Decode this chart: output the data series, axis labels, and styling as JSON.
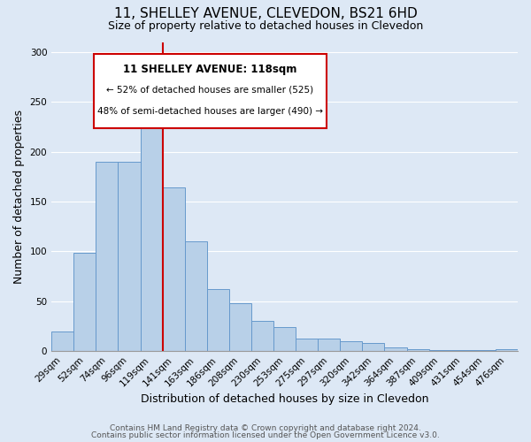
{
  "title": "11, SHELLEY AVENUE, CLEVEDON, BS21 6HD",
  "subtitle": "Size of property relative to detached houses in Clevedon",
  "xlabel": "Distribution of detached houses by size in Clevedon",
  "ylabel": "Number of detached properties",
  "bar_labels": [
    "29sqm",
    "52sqm",
    "74sqm",
    "96sqm",
    "119sqm",
    "141sqm",
    "163sqm",
    "186sqm",
    "208sqm",
    "230sqm",
    "253sqm",
    "275sqm",
    "297sqm",
    "320sqm",
    "342sqm",
    "364sqm",
    "387sqm",
    "409sqm",
    "431sqm",
    "454sqm",
    "476sqm"
  ],
  "bar_values": [
    20,
    99,
    190,
    190,
    243,
    164,
    110,
    62,
    48,
    30,
    24,
    13,
    13,
    10,
    8,
    4,
    2,
    1,
    1,
    1,
    2
  ],
  "bar_color": "#b8d0e8",
  "bar_edge_color": "#6699cc",
  "ylim": [
    0,
    310
  ],
  "yticks": [
    0,
    50,
    100,
    150,
    200,
    250,
    300
  ],
  "vline_x_idx": 4,
  "vline_color": "#cc0000",
  "annotation_title": "11 SHELLEY AVENUE: 118sqm",
  "annotation_line1": "← 52% of detached houses are smaller (525)",
  "annotation_line2": "48% of semi-detached houses are larger (490) →",
  "annotation_box_color": "#ffffff",
  "annotation_box_edge": "#cc0000",
  "footer1": "Contains HM Land Registry data © Crown copyright and database right 2024.",
  "footer2": "Contains public sector information licensed under the Open Government Licence v3.0.",
  "background_color": "#dde8f5",
  "plot_bg_color": "#dde8f5",
  "title_fontsize": 11,
  "subtitle_fontsize": 9,
  "axis_label_fontsize": 9,
  "tick_fontsize": 7.5,
  "footer_fontsize": 6.5
}
